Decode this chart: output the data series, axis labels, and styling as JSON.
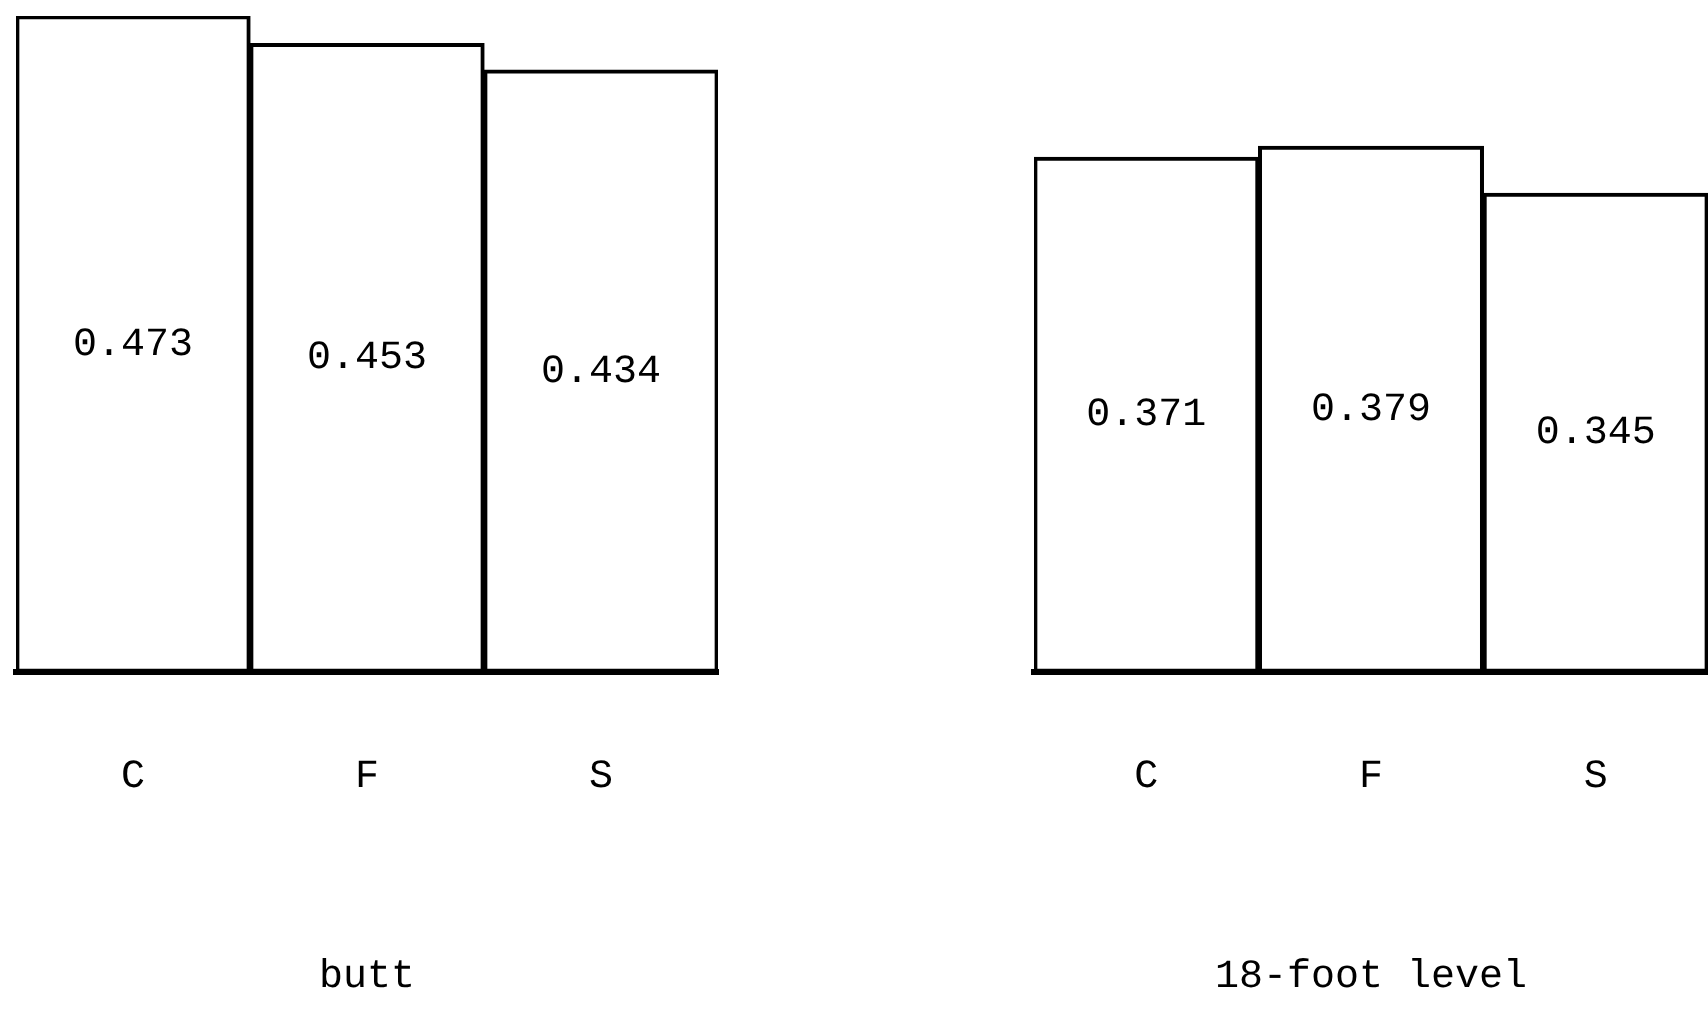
{
  "chart_data": [
    {
      "type": "bar",
      "xlabel": "butt",
      "categories": [
        "C",
        "F",
        "S"
      ],
      "values": [
        0.473,
        0.453,
        0.434
      ],
      "color": "#ffffff",
      "data_labels": true,
      "grid": false,
      "legend": false,
      "tick_labels": "x"
    },
    {
      "type": "bar",
      "xlabel": "18-foot level",
      "categories": [
        "C",
        "F",
        "S"
      ],
      "values": [
        0.371,
        0.379,
        0.345
      ],
      "color": "#ffffff",
      "data_labels": true,
      "grid": false,
      "legend": false,
      "tick_labels": "x"
    }
  ]
}
